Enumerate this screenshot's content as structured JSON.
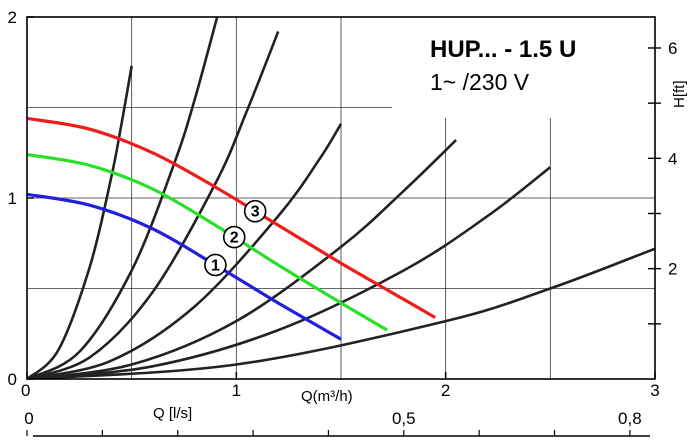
{
  "chart_data": {
    "type": "line",
    "title": "HUP... - 1.5 U",
    "subtitle": "1~ /230 V",
    "xlabel": "Q(m³/h)",
    "ylabel_right": "H[ft]",
    "xlabel_secondary": "Q [l/s]",
    "xlim": [
      0,
      3
    ],
    "ylim": [
      0,
      2
    ],
    "x_ticks": [
      "0",
      "1",
      "2",
      "3"
    ],
    "y_ticks": [
      "0",
      "1",
      "2"
    ],
    "right_ticks": [
      "2",
      "4",
      "6"
    ],
    "secondary_ticks": [
      "0",
      "0,5",
      "0,8"
    ],
    "colors": {
      "curve1": "#1f1fdc",
      "curve2": "#28e028",
      "curve3": "#ee1c1c",
      "system": "#222222",
      "grid": "#333333"
    },
    "series": [
      {
        "label": "1",
        "color": "#1f1fdc",
        "x": [
          0,
          0.3,
          0.6,
          0.9,
          1.2,
          1.5
        ],
        "y": [
          1.02,
          0.96,
          0.83,
          0.63,
          0.42,
          0.22
        ]
      },
      {
        "label": "2",
        "color": "#28e028",
        "x": [
          0,
          0.3,
          0.6,
          0.9,
          1.2,
          1.5,
          1.72
        ],
        "y": [
          1.24,
          1.18,
          1.05,
          0.85,
          0.63,
          0.42,
          0.27
        ]
      },
      {
        "label": "3",
        "color": "#ee1c1c",
        "x": [
          0,
          0.3,
          0.6,
          0.9,
          1.2,
          1.5,
          1.8,
          1.95
        ],
        "y": [
          1.44,
          1.38,
          1.25,
          1.06,
          0.85,
          0.64,
          0.44,
          0.34
        ]
      }
    ],
    "system_curves": [
      {
        "x": [
          0,
          0.15,
          0.3,
          0.4,
          0.45,
          0.5
        ],
        "y": [
          0,
          0.16,
          0.62,
          1.1,
          1.4,
          1.73
        ]
      },
      {
        "x": [
          0,
          0.25,
          0.5,
          0.7,
          0.8,
          0.92
        ],
        "y": [
          0,
          0.15,
          0.6,
          1.18,
          1.54,
          2.05
        ]
      },
      {
        "x": [
          0,
          0.3,
          0.6,
          0.9,
          1.05,
          1.2
        ],
        "y": [
          0,
          0.12,
          0.48,
          1.08,
          1.48,
          1.92
        ]
      },
      {
        "x": [
          0,
          0.4,
          0.8,
          1.2,
          1.4,
          1.5
        ],
        "y": [
          0,
          0.1,
          0.4,
          0.9,
          1.22,
          1.41
        ]
      },
      {
        "x": [
          0,
          0.5,
          1.0,
          1.5,
          1.8,
          2.05
        ],
        "y": [
          0,
          0.08,
          0.32,
          0.73,
          1.04,
          1.32
        ]
      },
      {
        "x": [
          0,
          0.6,
          1.2,
          1.8,
          2.2,
          2.5
        ],
        "y": [
          0,
          0.07,
          0.27,
          0.6,
          0.9,
          1.17
        ]
      },
      {
        "x": [
          0,
          1.0,
          2.0,
          2.5,
          3.0
        ],
        "y": [
          0,
          0.08,
          0.32,
          0.5,
          0.72
        ]
      }
    ],
    "grid": true
  }
}
